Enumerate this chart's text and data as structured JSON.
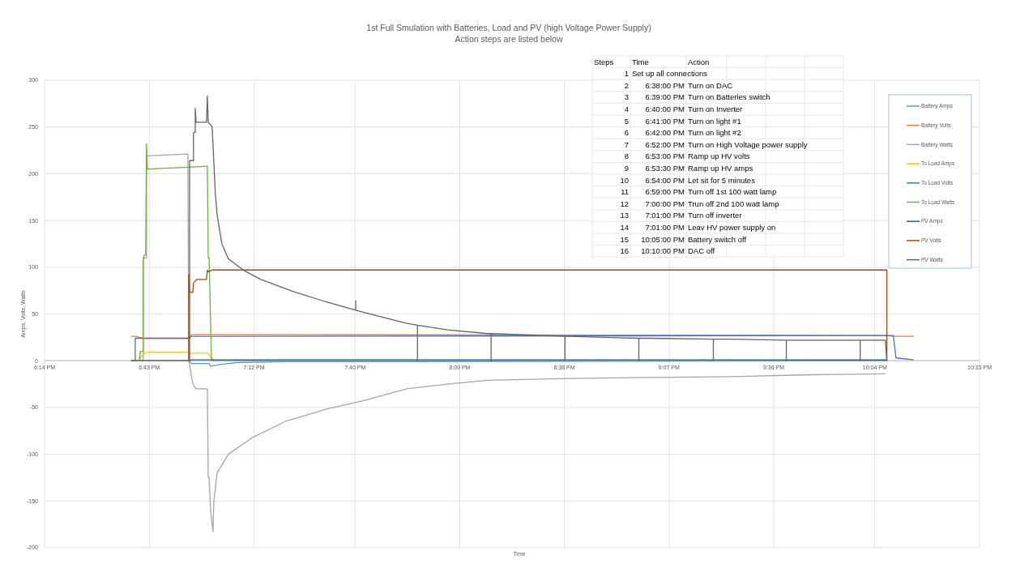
{
  "chart_data": {
    "type": "line",
    "title": "1st Full Smulation with Batteries, Load and PV (high Voltage Power Supply)",
    "subtitle": "Action steps are listed below",
    "xlabel": "Time",
    "ylabel": "Amps, Volts, Watts",
    "xlim": [
      18.2333,
      22.55
    ],
    "xticks": [
      {
        "value": 18.2333,
        "label": "6:14 PM"
      },
      {
        "value": 18.7167,
        "label": "6:43 PM"
      },
      {
        "value": 19.2,
        "label": "7:12 PM"
      },
      {
        "value": 19.6667,
        "label": "7:40 PM"
      },
      {
        "value": 20.15,
        "label": "8:09 PM"
      },
      {
        "value": 20.6333,
        "label": "8:38 PM"
      },
      {
        "value": 21.1167,
        "label": "9:07 PM"
      },
      {
        "value": 21.6,
        "label": "9:36 PM"
      },
      {
        "value": 22.0667,
        "label": "10:04 PM"
      },
      {
        "value": 22.55,
        "label": "10:33 PM"
      }
    ],
    "ylim": [
      -200,
      300
    ],
    "yticks": [
      -200,
      -150,
      -100,
      -50,
      0,
      50,
      100,
      150,
      200,
      250,
      300
    ],
    "grid": true,
    "legend": "right",
    "series": [
      {
        "name": "Battery Amps",
        "color": "#5b9bd5",
        "x": [
          18.633,
          18.903,
          18.91,
          18.993,
          19.0,
          19.045,
          19.12,
          19.344,
          19.906,
          22.122
        ],
        "values": [
          0,
          0,
          -3,
          -3,
          -6,
          -4,
          -2,
          -1,
          -1,
          0
        ]
      },
      {
        "name": "Battery Volts",
        "color": "#ed7d31",
        "x": [
          18.633,
          18.652,
          18.689,
          18.903,
          18.91,
          22.122,
          22.152,
          22.246
        ],
        "values": [
          26,
          26,
          24,
          24,
          28,
          27,
          26,
          26
        ]
      },
      {
        "name": "Battery Watts",
        "color": "#a5a5a5",
        "x": [
          18.633,
          18.689,
          18.689,
          18.704,
          18.704,
          18.895,
          18.899,
          18.918,
          18.933,
          18.985,
          18.989,
          18.993,
          19.0,
          19.011,
          19.015,
          19.03,
          19.082,
          19.195,
          19.344,
          19.532,
          19.719,
          19.906,
          20.093,
          20.28,
          20.655,
          21.029,
          21.404,
          21.778,
          22.115
        ],
        "values": [
          0,
          0,
          110,
          110,
          219,
          221,
          0,
          -25,
          -30,
          -30,
          -125,
          -125,
          -160,
          -183,
          -150,
          -120,
          -100,
          -82,
          -65,
          -52,
          -42,
          -30,
          -25,
          -21,
          -19,
          -18,
          -17,
          -15,
          -14
        ]
      },
      {
        "name": "To Load Amps",
        "color": "#ffc000",
        "x": [
          18.652,
          18.671,
          18.678,
          18.7,
          18.895,
          18.899,
          18.989,
          19.0,
          19.015
        ],
        "values": [
          0,
          0,
          4,
          9,
          9,
          8,
          8,
          4,
          0
        ]
      },
      {
        "name": "To Load Volts",
        "color": "#4472c4",
        "x": [
          18.633,
          18.652,
          18.652,
          18.903,
          18.91,
          22.152,
          22.164,
          22.246
        ],
        "values": [
          0,
          0,
          24,
          24,
          26,
          27,
          3,
          1
        ]
      },
      {
        "name": "To Load Watts",
        "color": "#70ad47",
        "x": [
          18.633,
          18.671,
          18.675,
          18.689,
          18.689,
          18.693,
          18.7,
          18.704,
          18.708,
          18.895,
          18.985,
          18.989,
          18.993,
          19.004,
          19.015,
          22.122
        ],
        "values": [
          0,
          0,
          10,
          10,
          109,
          113,
          113,
          232,
          205,
          207,
          208,
          110,
          110,
          0,
          0,
          0
        ]
      },
      {
        "name": "PV Amps",
        "color": "#255e91",
        "x": [
          18.903,
          18.91,
          22.122,
          22.122
        ],
        "values": [
          0,
          1,
          1,
          0
        ]
      },
      {
        "name": "PV Volts",
        "color": "#9e480e",
        "x": [
          18.899,
          18.899,
          18.903,
          18.918,
          18.921,
          18.936,
          18.981,
          18.985,
          18.989,
          19.007,
          22.122,
          22.122
        ],
        "values": [
          0,
          92,
          73,
          73,
          83,
          87,
          87,
          97,
          95,
          97,
          97,
          0
        ]
      },
      {
        "name": "PV Watts",
        "color": "#636363",
        "x": [
          18.633,
          18.899,
          18.903,
          18.903,
          18.921,
          18.921,
          18.929,
          18.929,
          18.933,
          18.981,
          18.985,
          18.989,
          19.007,
          19.022,
          19.03,
          19.052,
          19.082,
          19.157,
          19.232,
          19.382,
          19.532,
          19.67,
          19.67,
          19.67,
          19.719,
          19.906,
          19.955,
          19.955,
          19.955,
          20.093,
          20.28,
          20.295,
          20.295,
          20.295,
          20.636,
          20.636,
          20.636,
          20.655,
          20.977,
          20.977,
          20.977,
          21.029,
          21.321,
          21.321,
          21.321,
          21.404,
          21.658,
          21.658,
          21.658,
          21.778,
          21.999,
          21.999,
          21.999,
          22.115,
          22.122
        ],
        "values": [
          0,
          0,
          0,
          214,
          214,
          244,
          244,
          270,
          255,
          255,
          283,
          255,
          250,
          178,
          156,
          125,
          109,
          96,
          87,
          74,
          63,
          54,
          64,
          54,
          51,
          40,
          38,
          0,
          38,
          33,
          29,
          29,
          0,
          29,
          26,
          0,
          26,
          26,
          24,
          0,
          24,
          24,
          23,
          0,
          23,
          23,
          22,
          0,
          22,
          22,
          22,
          0,
          22,
          22,
          0
        ]
      }
    ],
    "annotations": [
      "Steps",
      "Time",
      "Action",
      "1",
      "Set up all connections",
      "2",
      "6:38:00 PM",
      "Turn on DAC",
      "3",
      "6:39:00 PM",
      "Turn on Batteries switch",
      "4",
      "6:40:00 PM",
      "Turn on Inverter",
      "5",
      "6:41:00 PM",
      "Turn on light #1",
      "6",
      "6:42:00 PM",
      "Turn on light #2",
      "7",
      "6:52:00 PM",
      "Turn on High Voltage power supply",
      "8",
      "6:53:00 PM",
      "Ramp up HV volts",
      "9",
      "6:53:30 PM",
      "Ramp up HV amps",
      "10",
      "6:54:00 PM",
      "Let sit for 5 minutes",
      "11",
      "6:59:00 PM",
      "Turn off 1st 100 watt lamp",
      "12",
      "7:00:00 PM",
      "Trun off 2nd 100 watt lamp",
      "13",
      "7:01:00 PM",
      "Turn off inverter",
      "14",
      "7:01:00 PM",
      "Leav HV power supply on",
      "15",
      "10:05:00 PM",
      "Battery switch off",
      "16",
      "10:10:00 PM",
      "DAC off"
    ]
  }
}
